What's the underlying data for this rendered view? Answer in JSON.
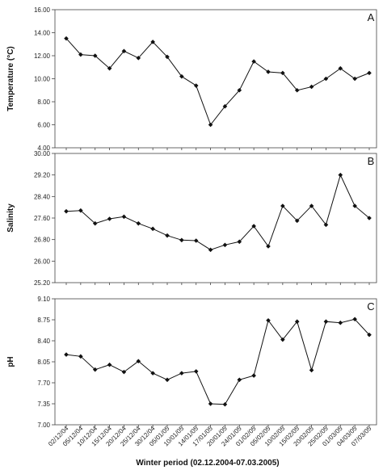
{
  "figure": {
    "xlabel": "Winter period (02.12.2004-07.03.2005)",
    "xticks": [
      "02/12/04",
      "05/12/04",
      "10/12/04",
      "15/12/04",
      "20/12/04",
      "25/12/04",
      "30/12/04",
      "05/01/05",
      "10/01/05",
      "14/01/05",
      "17/01/05",
      "20/01/05",
      "24/01/05",
      "01/02/05",
      "05/02/05",
      "10/02/05",
      "15/02/05",
      "20/02/05",
      "25/02/05",
      "01/03/05",
      "04/03/05",
      "07/03/05"
    ]
  },
  "chart_data": [
    {
      "type": "line",
      "panel": "A",
      "title": "",
      "xlabel": "Winter period (02.12.2004-07.03.2005)",
      "ylabel": "Temperature (°C)",
      "ylim": [
        4.0,
        16.0
      ],
      "yticks": [
        "4.00",
        "6.00",
        "8.00",
        "10.00",
        "12.00",
        "14.00",
        "16.00"
      ],
      "grid": false,
      "x": [
        "02/12/04",
        "05/12/04",
        "10/12/04",
        "15/12/04",
        "20/12/04",
        "25/12/04",
        "30/12/04",
        "05/01/05",
        "10/01/05",
        "14/01/05",
        "17/01/05",
        "20/01/05",
        "24/01/05",
        "01/02/05",
        "05/02/05",
        "10/02/05",
        "15/02/05",
        "20/02/05",
        "25/02/05",
        "01/03/05",
        "04/03/05",
        "07/03/05"
      ],
      "series": [
        {
          "values": [
            13.5,
            12.1,
            12.0,
            10.9,
            12.4,
            11.8,
            13.2,
            11.9,
            10.2,
            9.4,
            6.0,
            7.6,
            9.0,
            11.5,
            10.6,
            10.5,
            9.0,
            9.3,
            10.0,
            10.9,
            10.0,
            10.5
          ]
        }
      ]
    },
    {
      "type": "line",
      "panel": "B",
      "title": "",
      "xlabel": "Winter period (02.12.2004-07.03.2005)",
      "ylabel": "Salinity",
      "ylim": [
        25.2,
        30.0
      ],
      "yticks": [
        "25.20",
        "26.00",
        "26.80",
        "27.60",
        "28.40",
        "29.20",
        "30.00"
      ],
      "grid": false,
      "x": [
        "02/12/04",
        "05/12/04",
        "10/12/04",
        "15/12/04",
        "20/12/04",
        "25/12/04",
        "30/12/04",
        "05/01/05",
        "10/01/05",
        "14/01/05",
        "17/01/05",
        "20/01/05",
        "24/01/05",
        "01/02/05",
        "05/02/05",
        "10/02/05",
        "15/02/05",
        "20/02/05",
        "25/02/05",
        "01/03/05",
        "04/03/05",
        "07/03/05"
      ],
      "series": [
        {
          "values": [
            27.85,
            27.88,
            27.4,
            27.57,
            27.65,
            27.4,
            27.2,
            26.95,
            26.78,
            26.76,
            26.42,
            26.6,
            26.72,
            27.3,
            26.55,
            28.05,
            27.5,
            28.05,
            27.35,
            29.2,
            28.05,
            27.6
          ]
        }
      ]
    },
    {
      "type": "line",
      "panel": "C",
      "title": "",
      "xlabel": "Winter period (02.12.2004-07.03.2005)",
      "ylabel": "pH",
      "ylim": [
        7.0,
        9.1
      ],
      "yticks": [
        "7.00",
        "7.35",
        "7.70",
        "8.05",
        "8.40",
        "8.75",
        "9.10"
      ],
      "grid": false,
      "x": [
        "02/12/04",
        "05/12/04",
        "10/12/04",
        "15/12/04",
        "20/12/04",
        "25/12/04",
        "30/12/04",
        "05/01/05",
        "10/01/05",
        "14/01/05",
        "17/01/05",
        "20/01/05",
        "24/01/05",
        "01/02/05",
        "05/02/05",
        "10/02/05",
        "15/02/05",
        "20/02/05",
        "25/02/05",
        "01/03/05",
        "04/03/05",
        "07/03/05"
      ],
      "series": [
        {
          "values": [
            8.17,
            8.14,
            7.92,
            8.0,
            7.88,
            8.06,
            7.86,
            7.75,
            7.86,
            7.89,
            7.35,
            7.34,
            7.75,
            7.82,
            8.74,
            8.42,
            8.72,
            7.91,
            8.72,
            8.7,
            8.76,
            8.5
          ]
        }
      ]
    }
  ]
}
